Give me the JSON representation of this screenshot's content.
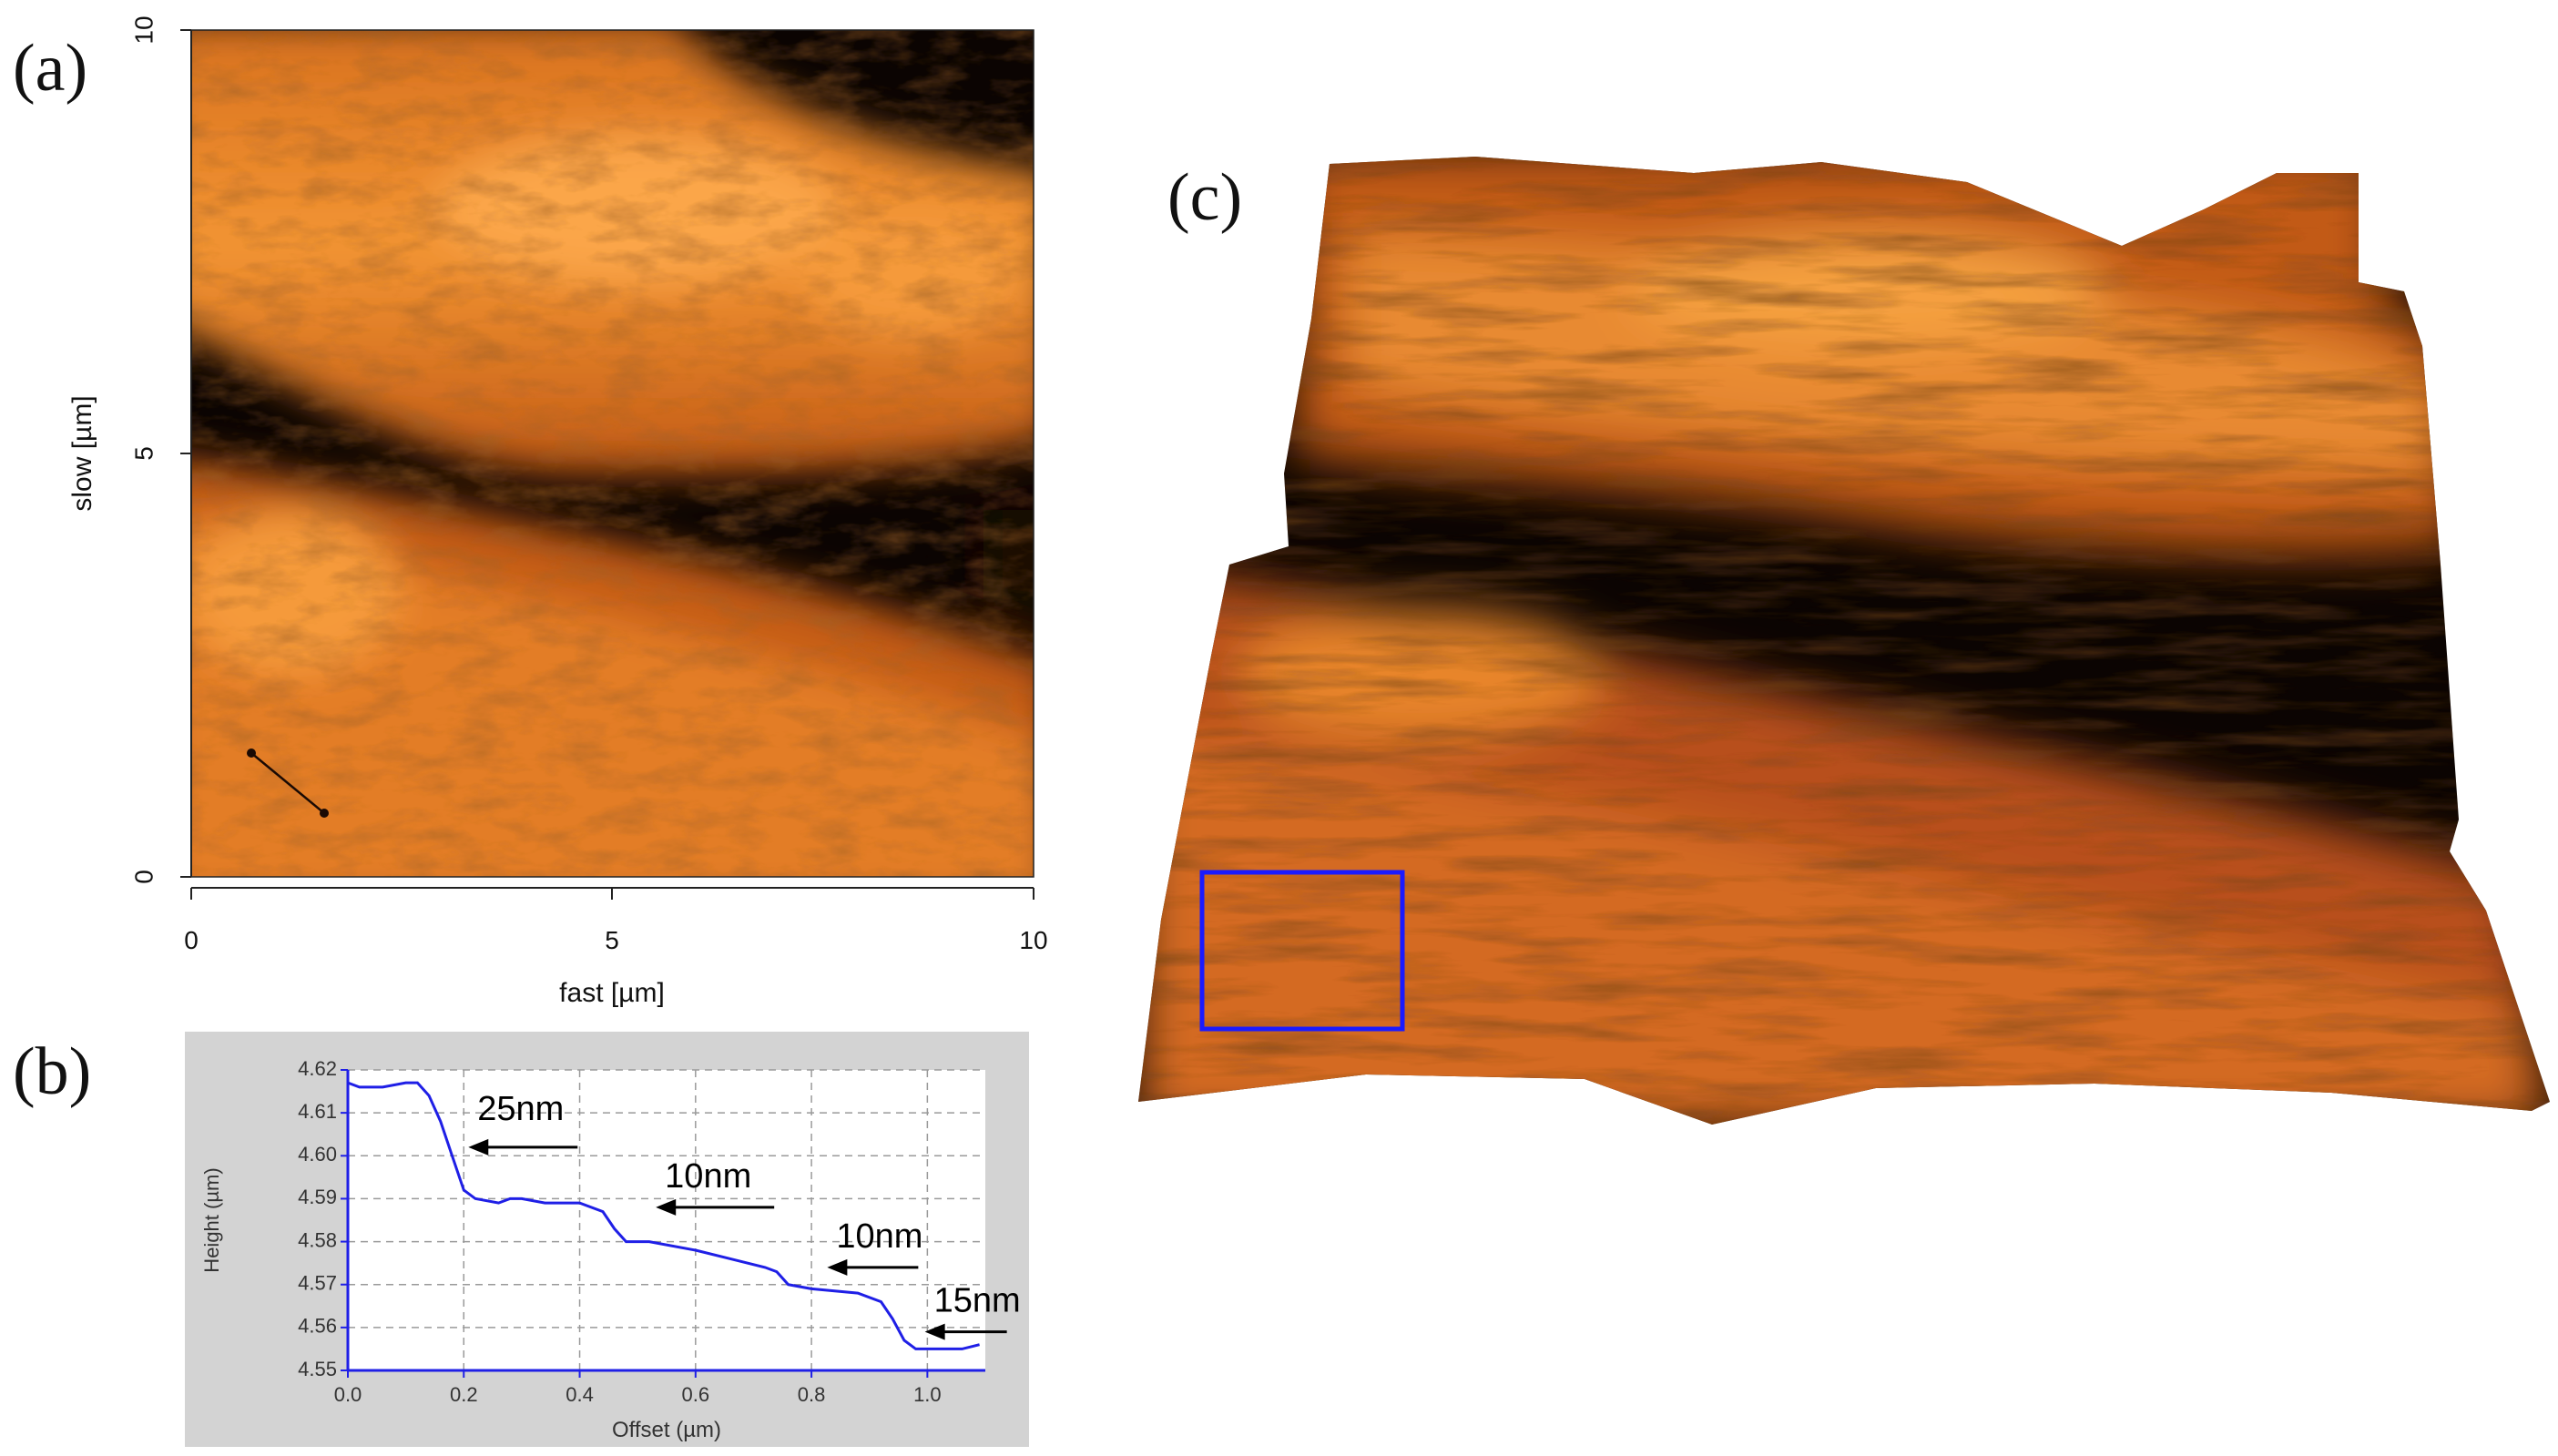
{
  "panels": {
    "a": "(a)",
    "b": "(b)",
    "c": "(c)"
  },
  "map_a": {
    "xlabel": "fast [µm]",
    "ylabel": "slow [µm]",
    "x_ticks": [
      "0",
      "5",
      "10"
    ],
    "y_ticks": [
      "0",
      "5",
      "10"
    ]
  },
  "profile_b": {
    "xlabel": "Offset (µm)",
    "ylabel": "Height (µm)",
    "x_ticks": [
      "0.0",
      "0.2",
      "0.4",
      "0.6",
      "0.8",
      "1.0"
    ],
    "y_ticks": [
      "4.55",
      "4.56",
      "4.57",
      "4.58",
      "4.59",
      "4.60",
      "4.61",
      "4.62"
    ],
    "annotations": [
      "25nm",
      "10nm",
      "10nm",
      "15nm"
    ]
  },
  "chart_data": {
    "type": "line",
    "xlabel": "Offset (µm)",
    "ylabel": "Height (µm)",
    "xlim": [
      0.0,
      1.1
    ],
    "ylim": [
      4.55,
      4.62
    ],
    "grid": true,
    "color": "#1f1fe6",
    "series": [
      {
        "x": [
          0.0,
          0.02,
          0.06,
          0.1,
          0.12,
          0.14,
          0.16,
          0.18,
          0.2,
          0.22,
          0.26,
          0.28,
          0.3,
          0.34,
          0.4,
          0.44,
          0.46,
          0.48,
          0.52,
          0.6,
          0.66,
          0.72,
          0.74,
          0.76,
          0.8,
          0.88,
          0.92,
          0.94,
          0.96,
          0.98,
          1.02,
          1.06,
          1.09
        ],
        "y": [
          4.617,
          4.616,
          4.616,
          4.617,
          4.617,
          4.614,
          4.608,
          4.6,
          4.592,
          4.59,
          4.589,
          4.59,
          4.59,
          4.589,
          4.589,
          4.587,
          4.583,
          4.58,
          4.58,
          4.578,
          4.576,
          4.574,
          4.573,
          4.57,
          4.569,
          4.568,
          4.566,
          4.562,
          4.557,
          4.555,
          4.555,
          4.555,
          4.556
        ]
      }
    ],
    "annotations": [
      {
        "text": "25nm",
        "x": 0.2,
        "y": 4.602
      },
      {
        "text": "10nm",
        "x": 0.5,
        "y": 4.588
      },
      {
        "text": "10nm",
        "x": 0.78,
        "y": 4.574
      },
      {
        "text": "15nm",
        "x": 0.98,
        "y": 4.559
      }
    ]
  },
  "colors": {
    "afm_dark": "#0b0402",
    "afm_mid": "#b5480f",
    "afm_bright": "#f79a3a",
    "profile_line": "#1f1fe6",
    "profile_bg": "#d3d3d3",
    "highlight_box": "#1a1aff"
  }
}
